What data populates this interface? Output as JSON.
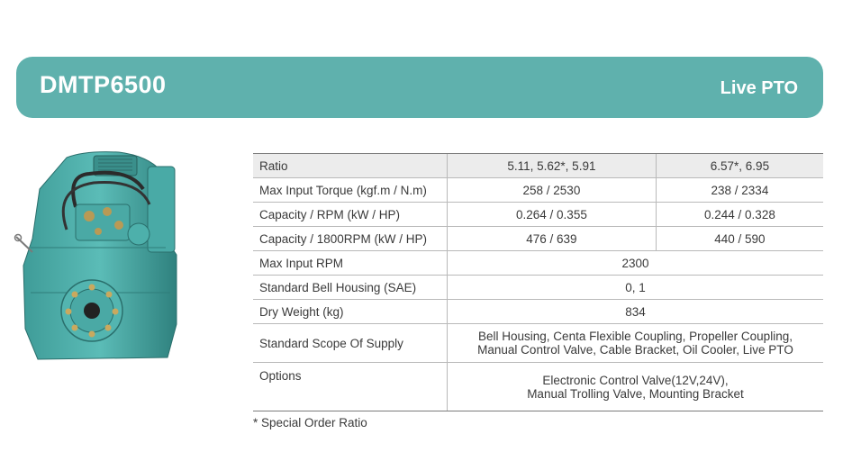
{
  "header": {
    "model": "DMTP6500",
    "variant": "Live PTO",
    "bar_color": "#5fb1ad"
  },
  "image": {
    "subject": "gearbox"
  },
  "specs": {
    "ratio": {
      "label": "Ratio",
      "col1": "5.11, 5.62*, 5.91",
      "col2": "6.57*, 6.95"
    },
    "torque": {
      "label": "Max Input Torque (kgf.m / N.m)",
      "col1": "258 / 2530",
      "col2": "238 / 2334"
    },
    "capacity_rpm": {
      "label": "Capacity / RPM (kW / HP)",
      "col1": "0.264 / 0.355",
      "col2": "0.244 / 0.328"
    },
    "capacity_1800": {
      "label": "Capacity / 1800RPM (kW / HP)",
      "col1": "476 / 639",
      "col2": "440 / 590"
    },
    "max_rpm": {
      "label": "Max Input RPM",
      "value": "2300"
    },
    "bell_housing": {
      "label": "Standard Bell Housing (SAE)",
      "value": "0, 1"
    },
    "dry_weight": {
      "label": "Dry Weight (kg)",
      "value": "834"
    },
    "scope": {
      "label": "Standard Scope Of Supply",
      "line1": "Bell Housing, Centa Flexible Coupling, Propeller Coupling,",
      "line2": "Manual Control Valve, Cable Bracket, Oil Cooler, Live PTO"
    },
    "options": {
      "label": "Options",
      "line1": "Electronic Control Valve(12V,24V),",
      "line2": "Manual Trolling Valve, Mounting Bracket"
    }
  },
  "footnote": "* Special Order Ratio"
}
